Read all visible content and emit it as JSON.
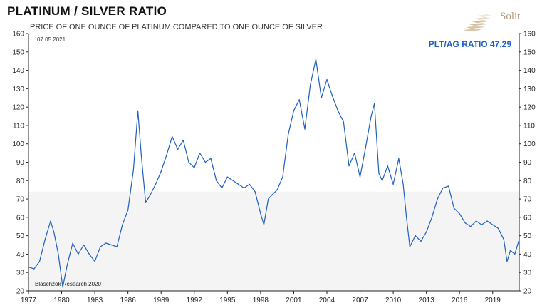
{
  "header": {
    "title": "PLATINUM / SILVER RATIO",
    "subtitle": "PRICE OF ONE OUNCE OF PLATINUM COMPARED TO ONE OUNCE OF SILVER"
  },
  "logo": {
    "text": "Solit",
    "icon": "stacked-gold-bars-icon",
    "color": "#b39a7a"
  },
  "chart_data": {
    "type": "line",
    "title": "PLATINUM / SILVER RATIO",
    "subtitle": "PRICE OF ONE OUNCE OF PLATINUM COMPARED TO ONE OUNCE OF SILVER",
    "date_label": "07.05.2021",
    "credit": "Blaschzok Research 2020",
    "annotation": "PLT/AG RATIO 47,29",
    "xlim": [
      1977,
      2021.4
    ],
    "ylim": [
      20,
      160
    ],
    "x_ticks": [
      "1977",
      "1980",
      "1983",
      "1986",
      "1989",
      "1992",
      "1995",
      "1998",
      "2001",
      "2004",
      "2007",
      "2010",
      "2013",
      "2016",
      "2019"
    ],
    "y_ticks": [
      "20",
      "30",
      "40",
      "50",
      "60",
      "70",
      "80",
      "90",
      "100",
      "110",
      "120",
      "130",
      "140",
      "150",
      "160"
    ],
    "band": {
      "from": 20,
      "to": 74,
      "color": "#f4f4f4"
    },
    "line_color": "#1f5fbf",
    "grid": false,
    "series": [
      {
        "x": [
          1977.0,
          1977.5,
          1978.0,
          1978.5,
          1979.0,
          1979.3,
          1979.7,
          1980.1,
          1980.5,
          1981.0,
          1981.5,
          1982.0,
          1982.5,
          1983.0,
          1983.5,
          1984.0,
          1984.5,
          1985.0,
          1985.5,
          1986.0,
          1986.5,
          1986.9,
          1987.2,
          1987.6,
          1988.0,
          1988.5,
          1989.0,
          1989.5,
          1990.0,
          1990.5,
          1991.0,
          1991.5,
          1992.0,
          1992.5,
          1993.0,
          1993.5,
          1994.0,
          1994.5,
          1995.0,
          1995.5,
          1996.0,
          1996.5,
          1997.0,
          1997.5,
          1998.0,
          1998.3,
          1998.7,
          1999.0,
          1999.5,
          2000.0,
          2000.5,
          2001.0,
          2001.5,
          2002.0,
          2002.5,
          2003.0,
          2003.5,
          2004.0,
          2004.5,
          2005.0,
          2005.5,
          2006.0,
          2006.5,
          2007.0,
          2007.5,
          2008.0,
          2008.3,
          2008.7,
          2009.0,
          2009.5,
          2010.0,
          2010.5,
          2010.9,
          2011.2,
          2011.5,
          2012.0,
          2012.5,
          2013.0,
          2013.5,
          2014.0,
          2014.5,
          2015.0,
          2015.5,
          2016.0,
          2016.5,
          2017.0,
          2017.5,
          2018.0,
          2018.5,
          2019.0,
          2019.5,
          2020.0,
          2020.3,
          2020.6,
          2021.0,
          2021.35
        ],
        "values": [
          33,
          32,
          36,
          48,
          58,
          52,
          40,
          22,
          34,
          46,
          40,
          45,
          40,
          36,
          44,
          46,
          45,
          44,
          56,
          64,
          86,
          118,
          94,
          68,
          72,
          78,
          85,
          94,
          104,
          97,
          102,
          90,
          87,
          95,
          90,
          92,
          80,
          76,
          82,
          80,
          78,
          76,
          78,
          74,
          62,
          56,
          70,
          72,
          75,
          82,
          105,
          118,
          124,
          108,
          132,
          146,
          125,
          135,
          126,
          118,
          112,
          88,
          95,
          82,
          98,
          115,
          122,
          84,
          80,
          88,
          78,
          92,
          78,
          60,
          44,
          50,
          47,
          52,
          60,
          70,
          76,
          77,
          65,
          62,
          57,
          55,
          58,
          56,
          58,
          56,
          54,
          48,
          36,
          42,
          40,
          47
        ]
      }
    ]
  }
}
